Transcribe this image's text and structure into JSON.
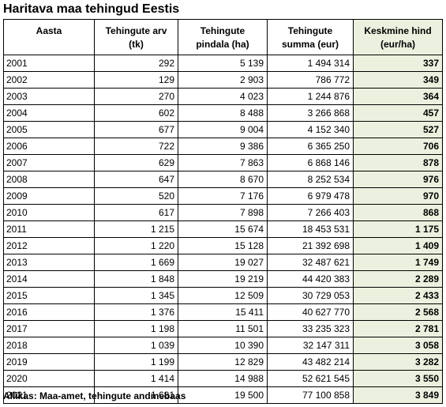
{
  "title": "Haritava maa tehingud Eestis",
  "columns": [
    {
      "line1": "Aasta",
      "line2": ""
    },
    {
      "line1": "Tehingute arv",
      "line2": "(tk)"
    },
    {
      "line1": "Tehingute",
      "line2": "pindala (ha)"
    },
    {
      "line1": "Tehingute",
      "line2": "summa (eur)"
    },
    {
      "line1": "Keskmine hind",
      "line2": "(eur/ha)"
    }
  ],
  "rows": [
    [
      "2001",
      "292",
      "5 139",
      "1 494 314",
      "337"
    ],
    [
      "2002",
      "129",
      "2 903",
      "786 772",
      "349"
    ],
    [
      "2003",
      "270",
      "4 023",
      "1 244 876",
      "364"
    ],
    [
      "2004",
      "602",
      "8 488",
      "3 266 868",
      "457"
    ],
    [
      "2005",
      "677",
      "9 004",
      "4 152 340",
      "527"
    ],
    [
      "2006",
      "722",
      "9 386",
      "6 365 250",
      "706"
    ],
    [
      "2007",
      "629",
      "7 863",
      "6 868 146",
      "878"
    ],
    [
      "2008",
      "647",
      "8 670",
      "8 252 534",
      "976"
    ],
    [
      "2009",
      "520",
      "7 176",
      "6 979 478",
      "970"
    ],
    [
      "2010",
      "617",
      "7 898",
      "7 266 403",
      "868"
    ],
    [
      "2011",
      "1 215",
      "15 674",
      "18 453 531",
      "1 175"
    ],
    [
      "2012",
      "1 220",
      "15 128",
      "21 392 698",
      "1 409"
    ],
    [
      "2013",
      "1 669",
      "19 027",
      "32 487 621",
      "1 749"
    ],
    [
      "2014",
      "1 848",
      "19 219",
      "44 420 383",
      "2 289"
    ],
    [
      "2015",
      "1 345",
      "12 509",
      "30 729 053",
      "2 433"
    ],
    [
      "2016",
      "1 376",
      "15 411",
      "40 627 770",
      "2 568"
    ],
    [
      "2017",
      "1 198",
      "11 501",
      "33 235 323",
      "2 781"
    ],
    [
      "2018",
      "1 039",
      "10 390",
      "32 147 311",
      "3 058"
    ],
    [
      "2019",
      "1 199",
      "12 829",
      "43 482 214",
      "3 282"
    ],
    [
      "2020",
      "1 414",
      "14 988",
      "52 621 545",
      "3 550"
    ],
    [
      "2021",
      "1 681",
      "19 500",
      "77 100 858",
      "3 849"
    ]
  ],
  "highlight_color": "#ebf1de",
  "source": "Allikas: Maa-amet, tehingute andmebaas"
}
